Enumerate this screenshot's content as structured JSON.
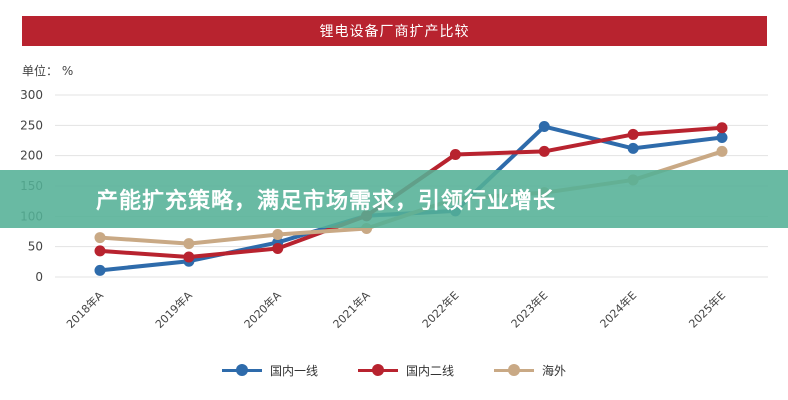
{
  "header": {
    "title": "锂电设备厂商扩产比较",
    "unit_label": "单位： %"
  },
  "banner": {
    "text": "产能扩充策略，满足市场需求，引领行业增长"
  },
  "chart_data": {
    "type": "line",
    "title": "锂电设备厂商扩产比较",
    "ylabel": "单位： %",
    "xlabel": "",
    "categories": [
      "2018年A",
      "2019年A",
      "2020年A",
      "2021年A",
      "2022年E",
      "2023年E",
      "2024年E",
      "2025年E"
    ],
    "ylim": [
      0,
      300
    ],
    "yticks": [
      0,
      50,
      100,
      150,
      200,
      250,
      300
    ],
    "grid": true,
    "legend_position": "bottom",
    "series": [
      {
        "name": "国内一线",
        "color": "#2e6bab",
        "values": [
          11,
          26,
          57,
          101,
          109,
          248,
          212,
          230
        ]
      },
      {
        "name": "国内二线",
        "color": "#b8232f",
        "values": [
          43,
          33,
          47,
          101,
          202,
          207,
          235,
          246
        ]
      },
      {
        "name": "海外",
        "color": "#c9a985",
        "values": [
          65,
          55,
          70,
          80,
          129,
          139,
          160,
          207
        ]
      }
    ]
  }
}
